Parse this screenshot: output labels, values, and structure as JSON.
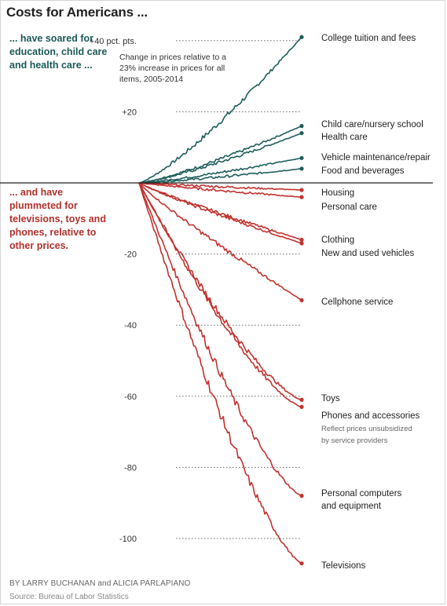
{
  "title": "Costs for Americans ...",
  "intro_up": "... have soared for education, child care and health care ...",
  "intro_down": "... and have plummeted for televisions, toys and phones, relative to other prices.",
  "byline": "BY LARRY BUCHANAN and ALICIA PARLAPIANO",
  "source": "Source: Bureau of Labor Statistics",
  "colors": {
    "up": "#1e5e5a",
    "down": "#c1322e",
    "axis": "#222222"
  },
  "chart_data": {
    "type": "line",
    "note": "Change in prices relative to a 23% increase in prices for all items, 2005-2014",
    "y_unit_label": "+40 pct. pts.",
    "ylim": [
      -108,
      42
    ],
    "x": [
      2005,
      2014
    ],
    "yticks": [
      {
        "value": 40,
        "label": "+40 pct. pts."
      },
      {
        "value": 20,
        "label": "+20"
      },
      {
        "value": -20,
        "label": "-20"
      },
      {
        "value": -40,
        "label": "-40"
      },
      {
        "value": -60,
        "label": "-60"
      },
      {
        "value": -80,
        "label": "-80"
      },
      {
        "value": -100,
        "label": "-100"
      }
    ],
    "series": [
      {
        "name": "College tuition and fees",
        "group": "up",
        "end": 41
      },
      {
        "name": "Child care/nursery school",
        "group": "up",
        "end": 16
      },
      {
        "name": "Health care",
        "group": "up",
        "end": 14
      },
      {
        "name": "Vehicle maintenance/repair",
        "group": "up",
        "end": 7
      },
      {
        "name": "Food and beverages",
        "group": "up",
        "end": 4
      },
      {
        "name": "Housing",
        "group": "down",
        "end": -2
      },
      {
        "name": "Personal care",
        "group": "down",
        "end": -4
      },
      {
        "name": "Clothing",
        "group": "down",
        "end": -16
      },
      {
        "name": "New and used vehicles",
        "group": "down",
        "end": -17
      },
      {
        "name": "Cellphone service",
        "group": "down",
        "end": -33
      },
      {
        "name": "Toys",
        "group": "down",
        "end": -61
      },
      {
        "name": "Phones and accessories",
        "group": "down",
        "end": -63,
        "sub_note": "Reflect prices unsubsidized by service providers"
      },
      {
        "name": "Personal computers and equipment",
        "group": "down",
        "end": -88
      },
      {
        "name": "Televisions",
        "group": "down",
        "end": -107
      }
    ]
  }
}
